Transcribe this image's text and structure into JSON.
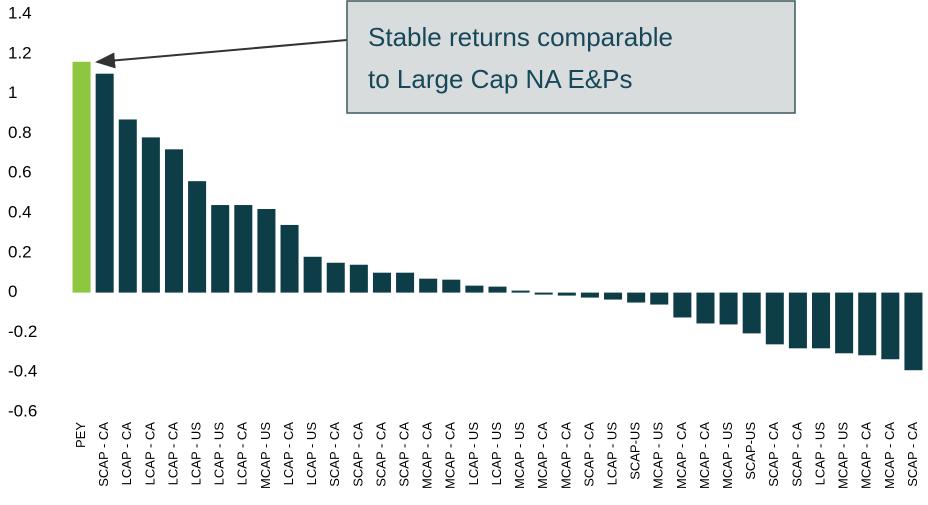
{
  "chart_data": {
    "type": "bar",
    "categories": [
      "PEY",
      "SCAP - CA",
      "LCAP - CA",
      "LCAP - CA",
      "LCAP - CA",
      "LCAP - US",
      "LCAP - US",
      "LCAP - CA",
      "MCAP - US",
      "LCAP - CA",
      "LCAP - US",
      "SCAP - CA",
      "SCAP - CA",
      "SCAP - CA",
      "SCAP - CA",
      "MCAP - CA",
      "MCAP - CA",
      "LCAP - US",
      "LCAP - US",
      "MCAP - US",
      "MCAP - CA",
      "MCAP - CA",
      "SCAP - CA",
      "LCAP - US",
      "SCAP-US",
      "MCAP - US",
      "MCAP - CA",
      "MCAP - CA",
      "MCAP - US",
      "SCAP-US",
      "SCAP - CA",
      "SCAP - CA",
      "LCAP - US",
      "MCAP - US",
      "MCAP - CA",
      "MCAP - CA",
      "SCAP - CA"
    ],
    "values": [
      1.16,
      1.1,
      0.87,
      0.78,
      0.72,
      0.56,
      0.44,
      0.44,
      0.42,
      0.34,
      0.18,
      0.15,
      0.14,
      0.1,
      0.1,
      0.07,
      0.065,
      0.035,
      0.03,
      0.01,
      -0.01,
      -0.015,
      -0.025,
      -0.035,
      -0.05,
      -0.06,
      -0.125,
      -0.155,
      -0.16,
      -0.205,
      -0.26,
      -0.28,
      -0.28,
      -0.305,
      -0.315,
      -0.335,
      -0.39
    ],
    "colors": [
      "#8dc63f",
      "#0d3d47",
      "#0d3d47",
      "#0d3d47",
      "#0d3d47",
      "#0d3d47",
      "#0d3d47",
      "#0d3d47",
      "#0d3d47",
      "#0d3d47",
      "#0d3d47",
      "#0d3d47",
      "#0d3d47",
      "#0d3d47",
      "#0d3d47",
      "#0d3d47",
      "#0d3d47",
      "#0d3d47",
      "#0d3d47",
      "#0d3d47",
      "#0d3d47",
      "#0d3d47",
      "#0d3d47",
      "#0d3d47",
      "#0d3d47",
      "#0d3d47",
      "#0d3d47",
      "#0d3d47",
      "#0d3d47",
      "#0d3d47",
      "#0d3d47",
      "#0d3d47",
      "#0d3d47",
      "#0d3d47",
      "#0d3d47",
      "#0d3d47",
      "#0d3d47"
    ],
    "ylim": [
      -0.6,
      1.4
    ],
    "yticks": [
      -0.6,
      -0.4,
      -0.2,
      0,
      0.2,
      0.4,
      0.6,
      0.8,
      1,
      1.2,
      1.4
    ],
    "grid": false,
    "annotation": {
      "lines": [
        "Stable returns comparable",
        "to Large Cap NA E&Ps"
      ]
    }
  }
}
